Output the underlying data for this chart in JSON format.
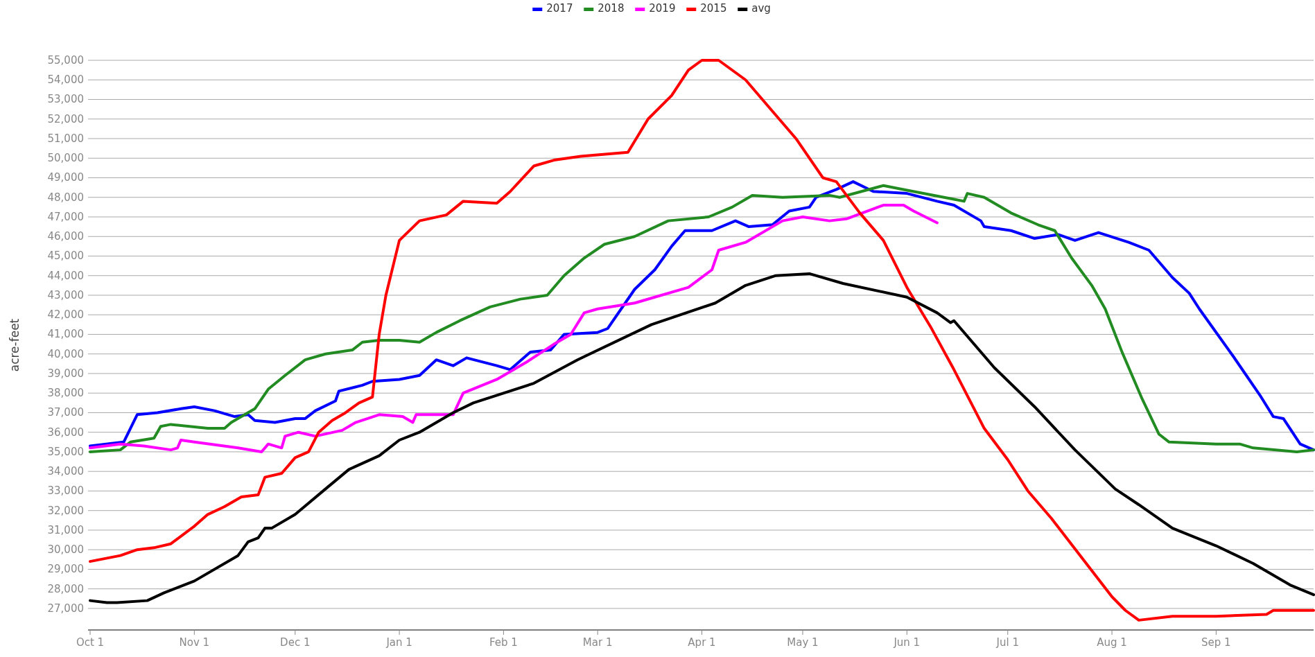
{
  "chart_data": {
    "type": "line",
    "ylabel": "acre-feet",
    "legend": "top",
    "grid": "y",
    "marker": "none",
    "line_style": "solid",
    "xlim": [
      "2014-10-01",
      "2015-09-30"
    ],
    "xticks": [
      {
        "value": "2014-10-01",
        "label": "Oct 1"
      },
      {
        "value": "2014-11-01",
        "label": "Nov 1"
      },
      {
        "value": "2014-12-01",
        "label": "Dec 1"
      },
      {
        "value": "2015-01-01",
        "label": "Jan 1"
      },
      {
        "value": "2015-02-01",
        "label": "Feb 1"
      },
      {
        "value": "2015-03-01",
        "label": "Mar 1"
      },
      {
        "value": "2015-04-01",
        "label": "Apr 1"
      },
      {
        "value": "2015-05-01",
        "label": "May 1"
      },
      {
        "value": "2015-06-01",
        "label": "Jun 1"
      },
      {
        "value": "2015-07-01",
        "label": "Jul 1"
      },
      {
        "value": "2015-08-01",
        "label": "Aug 1"
      },
      {
        "value": "2015-09-01",
        "label": "Sep 1"
      }
    ],
    "ylim": [
      25900,
      55000
    ],
    "yticks": [
      {
        "value": 27000,
        "label": "27,000"
      },
      {
        "value": 28000,
        "label": "28,000"
      },
      {
        "value": 29000,
        "label": "29,000"
      },
      {
        "value": 30000,
        "label": "30,000"
      },
      {
        "value": 31000,
        "label": "31,000"
      },
      {
        "value": 32000,
        "label": "32,000"
      },
      {
        "value": 33000,
        "label": "33,000"
      },
      {
        "value": 34000,
        "label": "34,000"
      },
      {
        "value": 35000,
        "label": "35,000"
      },
      {
        "value": 36000,
        "label": "36,000"
      },
      {
        "value": 37000,
        "label": "37,000"
      },
      {
        "value": 38000,
        "label": "38,000"
      },
      {
        "value": 39000,
        "label": "39,000"
      },
      {
        "value": 40000,
        "label": "40,000"
      },
      {
        "value": 41000,
        "label": "41,000"
      },
      {
        "value": 42000,
        "label": "42,000"
      },
      {
        "value": 43000,
        "label": "43,000"
      },
      {
        "value": 44000,
        "label": "44,000"
      },
      {
        "value": 45000,
        "label": "45,000"
      },
      {
        "value": 46000,
        "label": "46,000"
      },
      {
        "value": 47000,
        "label": "47,000"
      },
      {
        "value": 48000,
        "label": "48,000"
      },
      {
        "value": 49000,
        "label": "49,000"
      },
      {
        "value": 50000,
        "label": "50,000"
      },
      {
        "value": 51000,
        "label": "51,000"
      },
      {
        "value": 52000,
        "label": "52,000"
      },
      {
        "value": 53000,
        "label": "53,000"
      },
      {
        "value": 54000,
        "label": "54,000"
      },
      {
        "value": 55000,
        "label": "55,000"
      }
    ],
    "series": [
      {
        "name": "2017",
        "color": "#0000ff",
        "x": [
          "2014-10-01",
          "2014-10-11",
          "2014-10-15",
          "2014-10-21",
          "2014-10-28",
          "2014-11-01",
          "2014-11-07",
          "2014-11-13",
          "2014-11-17",
          "2014-11-19",
          "2014-11-25",
          "2014-12-01",
          "2014-12-04",
          "2014-12-07",
          "2014-12-13",
          "2014-12-14",
          "2014-12-21",
          "2014-12-24",
          "2015-01-01",
          "2015-01-07",
          "2015-01-12",
          "2015-01-17",
          "2015-01-21",
          "2015-01-30",
          "2015-02-03",
          "2015-02-09",
          "2015-02-15",
          "2015-02-19",
          "2015-03-01",
          "2015-03-04",
          "2015-03-12",
          "2015-03-18",
          "2015-03-23",
          "2015-03-27",
          "2015-04-04",
          "2015-04-11",
          "2015-04-15",
          "2015-04-22",
          "2015-04-27",
          "2015-05-03",
          "2015-05-05",
          "2015-05-11",
          "2015-05-16",
          "2015-05-22",
          "2015-06-01",
          "2015-06-10",
          "2015-06-15",
          "2015-06-23",
          "2015-06-24",
          "2015-07-02",
          "2015-07-09",
          "2015-07-16",
          "2015-07-21",
          "2015-07-28",
          "2015-08-06",
          "2015-08-12",
          "2015-08-19",
          "2015-08-24",
          "2015-08-27",
          "2015-09-06",
          "2015-09-14",
          "2015-09-18",
          "2015-09-21",
          "2015-09-26",
          "2015-09-30"
        ],
        "values": [
          35300,
          35500,
          36900,
          37000,
          37200,
          37300,
          37100,
          36800,
          36900,
          36600,
          36500,
          36700,
          36700,
          37100,
          37600,
          38100,
          38400,
          38600,
          38700,
          38900,
          39700,
          39400,
          39800,
          39400,
          39200,
          40100,
          40200,
          41000,
          41100,
          41300,
          43300,
          44300,
          45500,
          46300,
          46300,
          46800,
          46500,
          46600,
          47300,
          47500,
          48000,
          48400,
          48800,
          48300,
          48200,
          47800,
          47600,
          46800,
          46500,
          46300,
          45900,
          46100,
          45800,
          46200,
          45700,
          45300,
          43900,
          43100,
          42300,
          39900,
          37900,
          36800,
          36700,
          35400,
          35100
        ]
      },
      {
        "name": "2018",
        "color": "#228b22",
        "x": [
          "2014-10-01",
          "2014-10-10",
          "2014-10-13",
          "2014-10-20",
          "2014-10-22",
          "2014-10-25",
          "2014-11-05",
          "2014-11-10",
          "2014-11-12",
          "2014-11-19",
          "2014-11-23",
          "2014-11-28",
          "2014-12-04",
          "2014-12-10",
          "2014-12-18",
          "2014-12-21",
          "2014-12-26",
          "2015-01-01",
          "2015-01-07",
          "2015-01-12",
          "2015-01-19",
          "2015-01-28",
          "2015-02-06",
          "2015-02-14",
          "2015-02-19",
          "2015-02-25",
          "2015-03-03",
          "2015-03-12",
          "2015-03-22",
          "2015-04-03",
          "2015-04-10",
          "2015-04-16",
          "2015-04-25",
          "2015-05-09",
          "2015-05-12",
          "2015-05-25",
          "2015-05-31",
          "2015-06-15",
          "2015-06-18",
          "2015-06-19",
          "2015-06-24",
          "2015-07-02",
          "2015-07-10",
          "2015-07-15",
          "2015-07-20",
          "2015-07-26",
          "2015-07-30",
          "2015-08-04",
          "2015-08-10",
          "2015-08-15",
          "2015-08-18",
          "2015-09-01",
          "2015-09-08",
          "2015-09-12",
          "2015-09-25",
          "2015-09-30"
        ],
        "values": [
          35000,
          35100,
          35500,
          35700,
          36300,
          36400,
          36200,
          36200,
          36500,
          37200,
          38200,
          38900,
          39700,
          40000,
          40200,
          40600,
          40700,
          40700,
          40600,
          41100,
          41700,
          42400,
          42800,
          43000,
          44000,
          44900,
          45600,
          46000,
          46800,
          47000,
          47500,
          48100,
          48000,
          48100,
          48000,
          48600,
          48400,
          47900,
          47800,
          48200,
          48000,
          47200,
          46600,
          46300,
          44900,
          43500,
          42300,
          40100,
          37700,
          35900,
          35500,
          35400,
          35400,
          35200,
          35000,
          35100
        ]
      },
      {
        "name": "2019",
        "color": "#ff00ff",
        "x": [
          "2014-10-01",
          "2014-10-10",
          "2014-10-17",
          "2014-10-25",
          "2014-10-27",
          "2014-10-28",
          "2014-11-01",
          "2014-11-14",
          "2014-11-21",
          "2014-11-23",
          "2014-11-27",
          "2014-11-28",
          "2014-12-02",
          "2014-12-07",
          "2014-12-15",
          "2014-12-19",
          "2014-12-26",
          "2015-01-02",
          "2015-01-05",
          "2015-01-06",
          "2015-01-17",
          "2015-01-20",
          "2015-01-30",
          "2015-02-08",
          "2015-02-16",
          "2015-02-21",
          "2015-02-25",
          "2015-03-01",
          "2015-03-12",
          "2015-03-18",
          "2015-03-28",
          "2015-04-04",
          "2015-04-06",
          "2015-04-14",
          "2015-04-25",
          "2015-05-01",
          "2015-05-09",
          "2015-05-14",
          "2015-05-25",
          "2015-05-31",
          "2015-06-03",
          "2015-06-10"
        ],
        "values": [
          35200,
          35400,
          35300,
          35100,
          35200,
          35600,
          35500,
          35200,
          35000,
          35400,
          35200,
          35800,
          36000,
          35800,
          36100,
          36500,
          36900,
          36800,
          36500,
          36900,
          36900,
          38000,
          38700,
          39600,
          40500,
          41000,
          42100,
          42300,
          42600,
          42900,
          43400,
          44300,
          45300,
          45700,
          46800,
          47000,
          46800,
          46900,
          47600,
          47600,
          47300,
          46700
        ]
      },
      {
        "name": "2015",
        "color": "#ff0000",
        "x": [
          "2014-10-01",
          "2014-10-10",
          "2014-10-15",
          "2014-10-20",
          "2014-10-25",
          "2014-11-01",
          "2014-11-05",
          "2014-11-10",
          "2014-11-15",
          "2014-11-20",
          "2014-11-22",
          "2014-11-27",
          "2014-12-01",
          "2014-12-05",
          "2014-12-08",
          "2014-12-12",
          "2014-12-16",
          "2014-12-20",
          "2014-12-24",
          "2014-12-26",
          "2014-12-28",
          "2015-01-01",
          "2015-01-07",
          "2015-01-15",
          "2015-01-20",
          "2015-01-30",
          "2015-02-03",
          "2015-02-10",
          "2015-02-16",
          "2015-02-24",
          "2015-03-10",
          "2015-03-16",
          "2015-03-23",
          "2015-03-28",
          "2015-04-01",
          "2015-04-06",
          "2015-04-14",
          "2015-04-22",
          "2015-04-29",
          "2015-05-07",
          "2015-05-11",
          "2015-05-18",
          "2015-05-25",
          "2015-06-01",
          "2015-06-08",
          "2015-06-15",
          "2015-06-24",
          "2015-07-01",
          "2015-07-07",
          "2015-07-14",
          "2015-07-23",
          "2015-08-01",
          "2015-08-05",
          "2015-08-09",
          "2015-08-19",
          "2015-09-01",
          "2015-09-16",
          "2015-09-18",
          "2015-09-30"
        ],
        "values": [
          29400,
          29700,
          30000,
          30100,
          30300,
          31200,
          31800,
          32200,
          32700,
          32800,
          33700,
          33900,
          34700,
          35000,
          36000,
          36600,
          37000,
          37500,
          37800,
          41000,
          43000,
          45800,
          46800,
          47100,
          47800,
          47700,
          48300,
          49600,
          49900,
          50100,
          50300,
          52000,
          53200,
          54500,
          55000,
          55000,
          54000,
          52400,
          51000,
          49000,
          48800,
          47200,
          45800,
          43400,
          41400,
          39200,
          36200,
          34600,
          33000,
          31600,
          29600,
          27600,
          26900,
          26400,
          26600,
          26600,
          26700,
          26900,
          26900
        ]
      },
      {
        "name": "avg",
        "color": "#000000",
        "x": [
          "2014-10-01",
          "2014-10-06",
          "2014-10-09",
          "2014-10-18",
          "2014-10-23",
          "2014-11-01",
          "2014-11-14",
          "2014-11-17",
          "2014-11-20",
          "2014-11-22",
          "2014-11-24",
          "2014-12-01",
          "2014-12-10",
          "2014-12-17",
          "2014-12-26",
          "2015-01-01",
          "2015-01-07",
          "2015-01-17",
          "2015-01-23",
          "2015-02-10",
          "2015-02-23",
          "2015-03-17",
          "2015-04-05",
          "2015-04-14",
          "2015-04-23",
          "2015-05-03",
          "2015-05-13",
          "2015-06-01",
          "2015-06-10",
          "2015-06-14",
          "2015-06-15",
          "2015-06-27",
          "2015-07-09",
          "2015-07-21",
          "2015-08-02",
          "2015-08-09",
          "2015-08-19",
          "2015-09-01",
          "2015-09-12",
          "2015-09-23",
          "2015-09-30"
        ],
        "values": [
          27400,
          27300,
          27300,
          27400,
          27800,
          28400,
          29700,
          30400,
          30600,
          31100,
          31100,
          31800,
          33100,
          34100,
          34800,
          35600,
          36000,
          37000,
          37500,
          38500,
          39700,
          41500,
          42600,
          43500,
          44000,
          44100,
          43600,
          42900,
          42100,
          41600,
          41700,
          39300,
          37300,
          35100,
          33100,
          32300,
          31100,
          30200,
          29300,
          28200,
          27700
        ]
      }
    ]
  }
}
